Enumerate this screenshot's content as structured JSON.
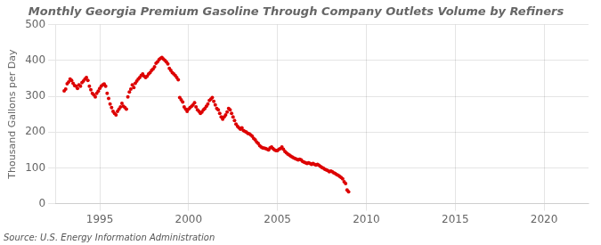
{
  "chart_data": {
    "type": "scatter",
    "title": "Monthly Georgia Premium Gasoline Through Company Outlets Volume by Refiners",
    "ylabel": "Thousand Gallons per Day",
    "annotations": [
      "Source: U.S. Energy Information Administration"
    ],
    "color": "#dd0000",
    "marker": "circle",
    "grid": true,
    "xlim": [
      1992.5,
      2022.5
    ],
    "ylim": [
      0,
      500
    ],
    "xticks": [
      1995,
      2000,
      2005,
      2010,
      2015,
      2020
    ],
    "yticks": [
      0,
      100,
      200,
      300,
      400,
      500
    ],
    "x": [
      1993.0,
      1993.083,
      1993.167,
      1993.25,
      1993.333,
      1993.417,
      1993.5,
      1993.583,
      1993.667,
      1993.75,
      1993.833,
      1993.917,
      1994.0,
      1994.083,
      1994.167,
      1994.25,
      1994.333,
      1994.417,
      1994.5,
      1994.583,
      1994.667,
      1994.75,
      1994.833,
      1994.917,
      1995.0,
      1995.083,
      1995.167,
      1995.25,
      1995.333,
      1995.417,
      1995.5,
      1995.583,
      1995.667,
      1995.75,
      1995.833,
      1995.917,
      1996.0,
      1996.083,
      1996.167,
      1996.25,
      1996.333,
      1996.417,
      1996.5,
      1996.583,
      1996.667,
      1996.75,
      1996.833,
      1996.917,
      1997.0,
      1997.083,
      1997.167,
      1997.25,
      1997.333,
      1997.417,
      1997.5,
      1997.583,
      1997.667,
      1997.75,
      1997.833,
      1997.917,
      1998.0,
      1998.083,
      1998.167,
      1998.25,
      1998.333,
      1998.417,
      1998.5,
      1998.583,
      1998.667,
      1998.75,
      1998.833,
      1998.917,
      1999.0,
      1999.083,
      1999.167,
      1999.25,
      1999.333,
      1999.417,
      1999.5,
      1999.583,
      1999.667,
      1999.75,
      1999.833,
      1999.917,
      2000.0,
      2000.083,
      2000.167,
      2000.25,
      2000.333,
      2000.417,
      2000.5,
      2000.583,
      2000.667,
      2000.75,
      2000.833,
      2000.917,
      2001.0,
      2001.083,
      2001.167,
      2001.25,
      2001.333,
      2001.417,
      2001.5,
      2001.583,
      2001.667,
      2001.75,
      2001.833,
      2001.917,
      2002.0,
      2002.083,
      2002.167,
      2002.25,
      2002.333,
      2002.417,
      2002.5,
      2002.583,
      2002.667,
      2002.75,
      2002.833,
      2002.917,
      2003.0,
      2003.083,
      2003.167,
      2003.25,
      2003.333,
      2003.417,
      2003.5,
      2003.583,
      2003.667,
      2003.75,
      2003.833,
      2003.917,
      2004.0,
      2004.083,
      2004.167,
      2004.25,
      2004.333,
      2004.417,
      2004.5,
      2004.583,
      2004.667,
      2004.75,
      2004.833,
      2004.917,
      2005.0,
      2005.083,
      2005.167,
      2005.25,
      2005.333,
      2005.417,
      2005.5,
      2005.583,
      2005.667,
      2005.75,
      2005.833,
      2005.917,
      2006.0,
      2006.083,
      2006.167,
      2006.25,
      2006.333,
      2006.417,
      2006.5,
      2006.583,
      2006.667,
      2006.75,
      2006.833,
      2006.917,
      2007.0,
      2007.083,
      2007.167,
      2007.25,
      2007.333,
      2007.417,
      2007.5,
      2007.583,
      2007.667,
      2007.75,
      2007.833,
      2007.917,
      2008.0,
      2008.083,
      2008.167,
      2008.25,
      2008.333,
      2008.417,
      2008.5,
      2008.583,
      2008.667,
      2008.75,
      2008.833,
      2008.917,
      2009.0
    ],
    "values": [
      315,
      320,
      335,
      340,
      348,
      344,
      336,
      330,
      328,
      322,
      332,
      328,
      338,
      342,
      348,
      352,
      344,
      328,
      318,
      308,
      304,
      298,
      308,
      314,
      322,
      328,
      332,
      334,
      328,
      308,
      294,
      278,
      268,
      258,
      252,
      248,
      258,
      264,
      270,
      280,
      272,
      268,
      264,
      298,
      312,
      320,
      332,
      324,
      336,
      342,
      348,
      352,
      358,
      362,
      356,
      352,
      356,
      362,
      366,
      372,
      376,
      382,
      392,
      396,
      402,
      406,
      408,
      404,
      400,
      396,
      390,
      378,
      372,
      366,
      362,
      358,
      352,
      346,
      296,
      290,
      284,
      270,
      264,
      258,
      264,
      268,
      272,
      276,
      282,
      270,
      262,
      258,
      252,
      256,
      262,
      266,
      272,
      278,
      288,
      292,
      296,
      286,
      276,
      266,
      262,
      252,
      242,
      236,
      242,
      248,
      256,
      266,
      262,
      252,
      242,
      232,
      222,
      216,
      212,
      208,
      212,
      204,
      202,
      200,
      196,
      195,
      192,
      188,
      182,
      178,
      172,
      168,
      162,
      158,
      156,
      155,
      154,
      152,
      150,
      156,
      158,
      154,
      150,
      148,
      148,
      152,
      154,
      158,
      152,
      146,
      142,
      138,
      136,
      133,
      130,
      128,
      126,
      124,
      122,
      124,
      122,
      118,
      116,
      114,
      112,
      114,
      112,
      110,
      112,
      110,
      108,
      110,
      107,
      104,
      101,
      99,
      96,
      94,
      92,
      89,
      91,
      89,
      86,
      84,
      81,
      79,
      76,
      73,
      69,
      61,
      56,
      38,
      33
    ]
  }
}
